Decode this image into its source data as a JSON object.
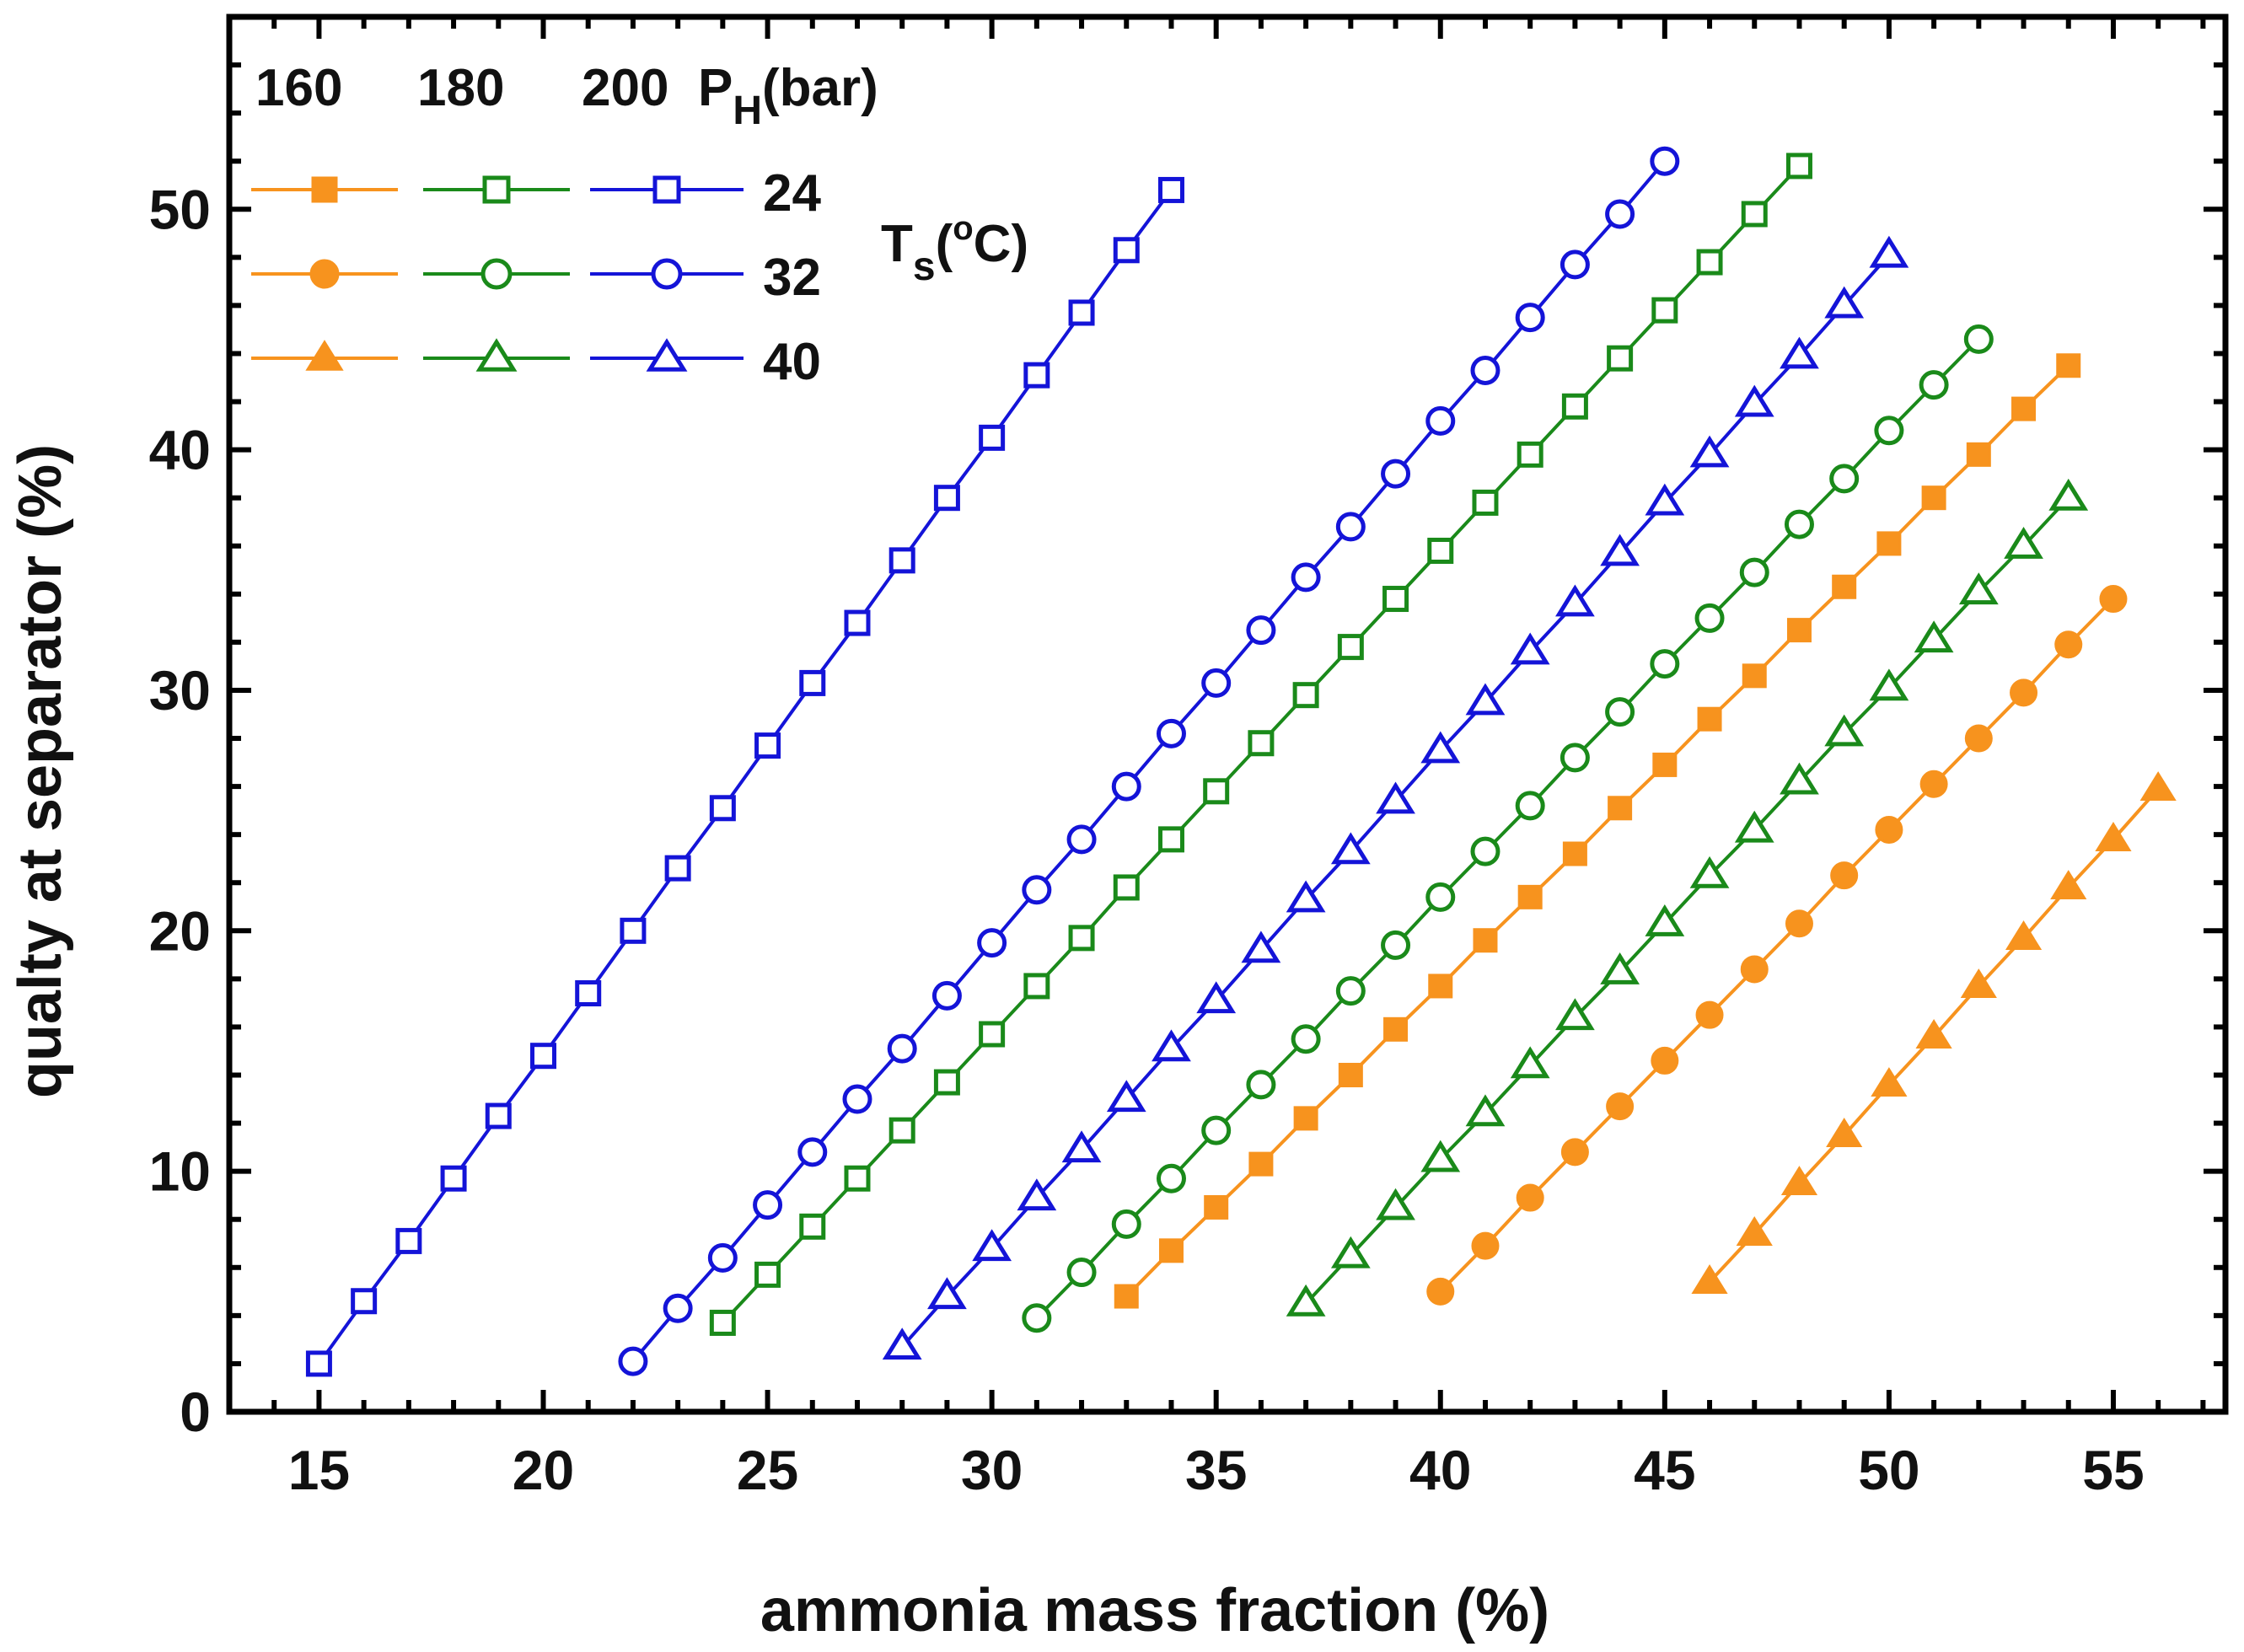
{
  "chart_data": {
    "type": "line",
    "xlabel": "ammonia mass fraction (%)",
    "ylabel": "qualty at separator (%)",
    "xlim": [
      13,
      57.5
    ],
    "ylim": [
      0,
      58
    ],
    "xticks": [
      15,
      20,
      25,
      30,
      35,
      40,
      45,
      50,
      55
    ],
    "yticks": [
      0,
      10,
      20,
      30,
      40,
      50
    ],
    "grid": false,
    "legend": {
      "placement": "top-left",
      "pressure_header": [
        "160",
        "180",
        "200"
      ],
      "pressure_label": "P",
      "pressure_subscript": "H",
      "pressure_unit": "(bar)",
      "temperature_label": "T",
      "temperature_subscript": "s",
      "temperature_sup": "o",
      "temperature_unit": "C)",
      "temperature_open": "(",
      "temperatures": [
        "24",
        "32",
        "40"
      ]
    },
    "colors": {
      "160": "#F7931E",
      "180": "#1A8A1A",
      "200": "#1414D8"
    },
    "series": [
      {
        "name": "160 bar, Ts=24",
        "pressure": "160",
        "temperature": "24",
        "marker": "square",
        "filled": true,
        "x": [
          33,
          34,
          35,
          36,
          37,
          38,
          39,
          40,
          41,
          42,
          43,
          44,
          45,
          46,
          47,
          48,
          49,
          50,
          51,
          52,
          53,
          54
        ],
        "y": [
          4.8,
          6.7,
          8.5,
          10.3,
          12.2,
          14.0,
          15.9,
          17.7,
          19.6,
          21.4,
          23.2,
          25.1,
          26.9,
          28.8,
          30.6,
          32.5,
          34.3,
          36.1,
          38.0,
          39.8,
          41.7,
          43.5
        ]
      },
      {
        "name": "160 bar, Ts=32",
        "pressure": "160",
        "temperature": "32",
        "marker": "circle",
        "filled": true,
        "x": [
          40,
          41,
          42,
          43,
          44,
          45,
          46,
          47,
          48,
          49,
          50,
          51,
          52,
          53,
          54,
          55
        ],
        "y": [
          5.0,
          6.9,
          8.9,
          10.8,
          12.7,
          14.6,
          16.5,
          18.4,
          20.3,
          22.3,
          24.2,
          26.1,
          28.0,
          29.9,
          31.9,
          33.8
        ]
      },
      {
        "name": "160 bar, Ts=40",
        "pressure": "160",
        "temperature": "40",
        "marker": "triangle",
        "filled": true,
        "x": [
          46,
          47,
          48,
          49,
          50,
          51,
          52,
          53,
          54,
          55,
          56
        ],
        "y": [
          5.4,
          7.4,
          9.5,
          11.5,
          13.6,
          15.6,
          17.7,
          19.7,
          21.8,
          23.8,
          25.9
        ]
      },
      {
        "name": "180 bar, Ts=24",
        "pressure": "180",
        "temperature": "24",
        "marker": "square",
        "filled": false,
        "x": [
          24,
          25,
          26,
          27,
          28,
          29,
          30,
          31,
          32,
          33,
          34,
          35,
          36,
          37,
          38,
          39,
          40,
          41,
          42,
          43,
          44,
          45,
          46,
          47,
          48
        ],
        "y": [
          3.7,
          5.7,
          7.7,
          9.7,
          11.7,
          13.7,
          15.7,
          17.7,
          19.7,
          21.8,
          23.8,
          25.8,
          27.8,
          29.8,
          31.8,
          33.8,
          35.8,
          37.8,
          39.8,
          41.8,
          43.8,
          45.8,
          47.8,
          49.8,
          51.8
        ]
      },
      {
        "name": "180 bar, Ts=32",
        "pressure": "180",
        "temperature": "32",
        "marker": "circle",
        "filled": false,
        "x": [
          31,
          32,
          33,
          34,
          35,
          36,
          37,
          38,
          39,
          40,
          41,
          42,
          43,
          44,
          45,
          46,
          47,
          48,
          49,
          50,
          51,
          52
        ],
        "y": [
          3.9,
          5.8,
          7.8,
          9.7,
          11.7,
          13.6,
          15.5,
          17.5,
          19.4,
          21.4,
          23.3,
          25.2,
          27.2,
          29.1,
          31.1,
          33.0,
          34.9,
          36.9,
          38.8,
          40.8,
          42.7,
          44.6
        ]
      },
      {
        "name": "180 bar, Ts=40",
        "pressure": "180",
        "temperature": "40",
        "marker": "triangle",
        "filled": false,
        "x": [
          37,
          38,
          39,
          40,
          41,
          42,
          43,
          44,
          45,
          46,
          47,
          48,
          49,
          50,
          51,
          52,
          53,
          54
        ],
        "y": [
          4.5,
          6.5,
          8.5,
          10.5,
          12.4,
          14.4,
          16.4,
          18.3,
          20.3,
          22.3,
          24.2,
          26.2,
          28.2,
          30.1,
          32.1,
          34.1,
          36.0,
          38.0
        ]
      },
      {
        "name": "200 bar, Ts=24",
        "pressure": "200",
        "temperature": "24",
        "marker": "square",
        "filled": false,
        "x": [
          15,
          16,
          17,
          18,
          19,
          20,
          21,
          22,
          23,
          24,
          25,
          26,
          27,
          28,
          29,
          30,
          31,
          32,
          33,
          34
        ],
        "y": [
          2.0,
          4.6,
          7.1,
          9.7,
          12.3,
          14.8,
          17.4,
          20.0,
          22.6,
          25.1,
          27.7,
          30.3,
          32.8,
          35.4,
          38.0,
          40.5,
          43.1,
          45.7,
          48.3,
          50.8
        ]
      },
      {
        "name": "200 bar, Ts=32",
        "pressure": "200",
        "temperature": "32",
        "marker": "circle",
        "filled": false,
        "x": [
          22,
          23,
          24,
          25,
          26,
          27,
          28,
          29,
          30,
          31,
          32,
          33,
          34,
          35,
          36,
          37,
          38,
          39,
          40,
          41,
          42,
          43,
          44,
          45
        ],
        "y": [
          2.1,
          4.3,
          6.4,
          8.6,
          10.8,
          13.0,
          15.1,
          17.3,
          19.5,
          21.7,
          23.8,
          26.0,
          28.2,
          30.3,
          32.5,
          34.7,
          36.8,
          39.0,
          41.2,
          43.3,
          45.5,
          47.7,
          49.8,
          52.0
        ]
      },
      {
        "name": "200 bar, Ts=40",
        "pressure": "200",
        "temperature": "40",
        "marker": "triangle",
        "filled": false,
        "x": [
          28,
          29,
          30,
          31,
          32,
          33,
          34,
          35,
          36,
          37,
          38,
          39,
          40,
          41,
          42,
          43,
          44,
          45,
          46,
          47,
          48,
          49,
          50
        ],
        "y": [
          2.7,
          4.8,
          6.8,
          8.9,
          10.9,
          13.0,
          15.1,
          17.1,
          19.2,
          21.3,
          23.3,
          25.4,
          27.5,
          29.5,
          31.6,
          33.6,
          35.7,
          37.8,
          39.8,
          41.9,
          43.9,
          46.0,
          48.1
        ]
      }
    ]
  }
}
